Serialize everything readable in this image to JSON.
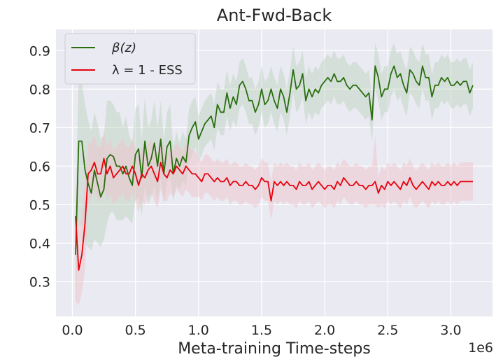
{
  "chart_data": {
    "type": "line",
    "title": "Ant-Fwd-Back",
    "xlabel": "Meta-training Time-steps",
    "ylabel": "",
    "x_offset_label": "1e6",
    "xlim": [
      -0.13,
      3.33
    ],
    "ylim": [
      0.21,
      0.955
    ],
    "x_ticks": [
      0.0,
      0.5,
      1.0,
      1.5,
      2.0,
      2.5,
      3.0
    ],
    "x_tick_labels": [
      "0.0",
      "0.5",
      "1.0",
      "1.5",
      "2.0",
      "2.5",
      "3.0"
    ],
    "y_ticks": [
      0.3,
      0.4,
      0.5,
      0.6,
      0.7,
      0.8,
      0.9
    ],
    "y_tick_labels": [
      "0.3",
      "0.4",
      "0.5",
      "0.6",
      "0.7",
      "0.8",
      "0.9"
    ],
    "grid": true,
    "legend_position": "top-left",
    "series": [
      {
        "name": "β(z)",
        "color": "#2a6e0f",
        "band_color": "#bcd2bc",
        "x": [
          0.025,
          0.05,
          0.075,
          0.1,
          0.125,
          0.15,
          0.175,
          0.2,
          0.225,
          0.25,
          0.275,
          0.3,
          0.325,
          0.35,
          0.375,
          0.4,
          0.425,
          0.45,
          0.475,
          0.5,
          0.525,
          0.55,
          0.575,
          0.6,
          0.625,
          0.65,
          0.675,
          0.7,
          0.725,
          0.75,
          0.775,
          0.8,
          0.825,
          0.85,
          0.875,
          0.9,
          0.925,
          0.95,
          0.975,
          1.0,
          1.025,
          1.05,
          1.075,
          1.1,
          1.125,
          1.15,
          1.175,
          1.2,
          1.225,
          1.25,
          1.275,
          1.3,
          1.325,
          1.35,
          1.375,
          1.4,
          1.425,
          1.45,
          1.475,
          1.5,
          1.525,
          1.55,
          1.575,
          1.6,
          1.625,
          1.65,
          1.675,
          1.7,
          1.725,
          1.75,
          1.775,
          1.8,
          1.825,
          1.85,
          1.875,
          1.9,
          1.925,
          1.95,
          1.975,
          2.0,
          2.025,
          2.05,
          2.075,
          2.1,
          2.125,
          2.15,
          2.175,
          2.2,
          2.225,
          2.25,
          2.275,
          2.3,
          2.325,
          2.35,
          2.375,
          2.4,
          2.425,
          2.45,
          2.475,
          2.5,
          2.525,
          2.55,
          2.575,
          2.6,
          2.625,
          2.65,
          2.675,
          2.7,
          2.725,
          2.75,
          2.775,
          2.8,
          2.825,
          2.85,
          2.875,
          2.9,
          2.925,
          2.95,
          2.975,
          3.0,
          3.025,
          3.05,
          3.075,
          3.1,
          3.125,
          3.15,
          3.175
        ],
        "values": [
          0.37,
          0.665,
          0.665,
          0.59,
          0.555,
          0.53,
          0.59,
          0.555,
          0.52,
          0.54,
          0.62,
          0.63,
          0.625,
          0.6,
          0.6,
          0.58,
          0.6,
          0.57,
          0.55,
          0.63,
          0.645,
          0.57,
          0.665,
          0.6,
          0.62,
          0.66,
          0.6,
          0.67,
          0.58,
          0.65,
          0.665,
          0.58,
          0.62,
          0.6,
          0.625,
          0.61,
          0.68,
          0.7,
          0.715,
          0.67,
          0.69,
          0.71,
          0.72,
          0.73,
          0.7,
          0.76,
          0.74,
          0.74,
          0.79,
          0.75,
          0.78,
          0.76,
          0.81,
          0.82,
          0.8,
          0.77,
          0.77,
          0.74,
          0.76,
          0.8,
          0.76,
          0.77,
          0.8,
          0.77,
          0.75,
          0.8,
          0.78,
          0.74,
          0.79,
          0.85,
          0.8,
          0.81,
          0.84,
          0.77,
          0.8,
          0.78,
          0.8,
          0.79,
          0.81,
          0.82,
          0.83,
          0.82,
          0.84,
          0.82,
          0.82,
          0.83,
          0.81,
          0.8,
          0.81,
          0.81,
          0.8,
          0.79,
          0.78,
          0.79,
          0.72,
          0.86,
          0.83,
          0.78,
          0.8,
          0.8,
          0.84,
          0.86,
          0.83,
          0.84,
          0.81,
          0.79,
          0.85,
          0.84,
          0.82,
          0.81,
          0.86,
          0.83,
          0.83,
          0.78,
          0.81,
          0.81,
          0.83,
          0.82,
          0.83,
          0.81,
          0.81,
          0.82,
          0.81,
          0.82,
          0.82,
          0.79,
          0.81
        ],
        "lower": [
          0.22,
          0.44,
          0.45,
          0.4,
          0.39,
          0.38,
          0.41,
          0.4,
          0.39,
          0.41,
          0.45,
          0.48,
          0.48,
          0.46,
          0.46,
          0.46,
          0.47,
          0.46,
          0.45,
          0.51,
          0.52,
          0.47,
          0.55,
          0.5,
          0.52,
          0.55,
          0.5,
          0.57,
          0.5,
          0.56,
          0.57,
          0.51,
          0.55,
          0.54,
          0.56,
          0.55,
          0.61,
          0.63,
          0.65,
          0.61,
          0.63,
          0.65,
          0.66,
          0.67,
          0.64,
          0.7,
          0.68,
          0.68,
          0.73,
          0.69,
          0.72,
          0.7,
          0.75,
          0.76,
          0.74,
          0.71,
          0.71,
          0.68,
          0.7,
          0.74,
          0.7,
          0.71,
          0.74,
          0.71,
          0.69,
          0.74,
          0.72,
          0.68,
          0.73,
          0.79,
          0.74,
          0.75,
          0.78,
          0.71,
          0.74,
          0.72,
          0.74,
          0.73,
          0.75,
          0.76,
          0.77,
          0.76,
          0.78,
          0.76,
          0.76,
          0.77,
          0.75,
          0.74,
          0.75,
          0.75,
          0.74,
          0.73,
          0.72,
          0.73,
          0.66,
          0.8,
          0.77,
          0.72,
          0.74,
          0.74,
          0.78,
          0.8,
          0.77,
          0.78,
          0.75,
          0.73,
          0.79,
          0.78,
          0.76,
          0.75,
          0.8,
          0.77,
          0.77,
          0.72,
          0.75,
          0.75,
          0.77,
          0.76,
          0.77,
          0.75,
          0.75,
          0.76,
          0.75,
          0.76,
          0.76,
          0.73,
          0.75
        ],
        "upper": [
          0.5,
          0.83,
          0.82,
          0.76,
          0.72,
          0.69,
          0.74,
          0.71,
          0.67,
          0.68,
          0.77,
          0.77,
          0.76,
          0.74,
          0.74,
          0.7,
          0.73,
          0.68,
          0.66,
          0.75,
          0.76,
          0.67,
          0.78,
          0.7,
          0.72,
          0.77,
          0.7,
          0.77,
          0.67,
          0.74,
          0.76,
          0.65,
          0.69,
          0.66,
          0.69,
          0.67,
          0.75,
          0.77,
          0.78,
          0.73,
          0.75,
          0.77,
          0.78,
          0.79,
          0.76,
          0.82,
          0.8,
          0.8,
          0.85,
          0.81,
          0.84,
          0.82,
          0.87,
          0.88,
          0.86,
          0.83,
          0.83,
          0.8,
          0.82,
          0.86,
          0.82,
          0.83,
          0.86,
          0.83,
          0.81,
          0.86,
          0.84,
          0.8,
          0.85,
          0.91,
          0.86,
          0.87,
          0.9,
          0.83,
          0.86,
          0.84,
          0.86,
          0.85,
          0.87,
          0.88,
          0.89,
          0.88,
          0.9,
          0.88,
          0.88,
          0.89,
          0.87,
          0.86,
          0.87,
          0.87,
          0.86,
          0.85,
          0.84,
          0.85,
          0.78,
          0.92,
          0.89,
          0.84,
          0.86,
          0.86,
          0.9,
          0.92,
          0.89,
          0.9,
          0.87,
          0.85,
          0.91,
          0.9,
          0.88,
          0.87,
          0.92,
          0.89,
          0.89,
          0.84,
          0.87,
          0.87,
          0.89,
          0.88,
          0.89,
          0.87,
          0.87,
          0.88,
          0.87,
          0.88,
          0.88,
          0.85,
          0.87
        ]
      },
      {
        "name": "λ = 1 - ESS",
        "color": "#e8000b",
        "band_color": "#f0c0c8",
        "x": [
          0.025,
          0.05,
          0.075,
          0.1,
          0.125,
          0.15,
          0.175,
          0.2,
          0.225,
          0.25,
          0.275,
          0.3,
          0.325,
          0.35,
          0.375,
          0.4,
          0.425,
          0.45,
          0.475,
          0.5,
          0.525,
          0.55,
          0.575,
          0.6,
          0.625,
          0.65,
          0.675,
          0.7,
          0.725,
          0.75,
          0.775,
          0.8,
          0.825,
          0.85,
          0.875,
          0.9,
          0.925,
          0.95,
          0.975,
          1.0,
          1.025,
          1.05,
          1.075,
          1.1,
          1.125,
          1.15,
          1.175,
          1.2,
          1.225,
          1.25,
          1.275,
          1.3,
          1.325,
          1.35,
          1.375,
          1.4,
          1.425,
          1.45,
          1.475,
          1.5,
          1.525,
          1.55,
          1.575,
          1.6,
          1.625,
          1.65,
          1.675,
          1.7,
          1.725,
          1.75,
          1.775,
          1.8,
          1.825,
          1.85,
          1.875,
          1.9,
          1.925,
          1.95,
          1.975,
          2.0,
          2.025,
          2.05,
          2.075,
          2.1,
          2.125,
          2.15,
          2.175,
          2.2,
          2.225,
          2.25,
          2.275,
          2.3,
          2.325,
          2.35,
          2.375,
          2.4,
          2.425,
          2.45,
          2.475,
          2.5,
          2.525,
          2.55,
          2.575,
          2.6,
          2.625,
          2.65,
          2.675,
          2.7,
          2.725,
          2.75,
          2.775,
          2.8,
          2.825,
          2.85,
          2.875,
          2.9,
          2.925,
          2.95,
          2.975,
          3.0,
          3.025,
          3.05,
          3.075,
          3.1,
          3.125,
          3.15,
          3.175
        ],
        "values": [
          0.47,
          0.33,
          0.37,
          0.45,
          0.58,
          0.59,
          0.61,
          0.58,
          0.58,
          0.62,
          0.58,
          0.6,
          0.57,
          0.58,
          0.59,
          0.6,
          0.58,
          0.58,
          0.6,
          0.58,
          0.55,
          0.58,
          0.57,
          0.59,
          0.6,
          0.58,
          0.56,
          0.61,
          0.58,
          0.57,
          0.59,
          0.58,
          0.6,
          0.59,
          0.58,
          0.6,
          0.59,
          0.58,
          0.58,
          0.57,
          0.56,
          0.58,
          0.58,
          0.57,
          0.56,
          0.57,
          0.56,
          0.56,
          0.57,
          0.55,
          0.56,
          0.56,
          0.55,
          0.55,
          0.56,
          0.55,
          0.55,
          0.54,
          0.55,
          0.57,
          0.56,
          0.56,
          0.51,
          0.56,
          0.55,
          0.56,
          0.55,
          0.56,
          0.55,
          0.55,
          0.54,
          0.56,
          0.55,
          0.55,
          0.56,
          0.54,
          0.55,
          0.56,
          0.55,
          0.54,
          0.55,
          0.55,
          0.54,
          0.56,
          0.55,
          0.57,
          0.56,
          0.55,
          0.55,
          0.56,
          0.55,
          0.55,
          0.54,
          0.55,
          0.55,
          0.56,
          0.53,
          0.55,
          0.54,
          0.56,
          0.55,
          0.56,
          0.55,
          0.54,
          0.56,
          0.55,
          0.57,
          0.55,
          0.54,
          0.55,
          0.56,
          0.55,
          0.54,
          0.56,
          0.55,
          0.56,
          0.55,
          0.55,
          0.56,
          0.55,
          0.56,
          0.55,
          0.56,
          0.56,
          0.56,
          0.56,
          0.56
        ],
        "lower": [
          0.25,
          0.24,
          0.27,
          0.33,
          0.5,
          0.52,
          0.54,
          0.51,
          0.51,
          0.55,
          0.51,
          0.53,
          0.5,
          0.51,
          0.52,
          0.53,
          0.51,
          0.51,
          0.53,
          0.51,
          0.48,
          0.51,
          0.5,
          0.52,
          0.53,
          0.51,
          0.49,
          0.54,
          0.51,
          0.51,
          0.53,
          0.52,
          0.54,
          0.53,
          0.52,
          0.54,
          0.53,
          0.52,
          0.52,
          0.52,
          0.51,
          0.53,
          0.53,
          0.52,
          0.51,
          0.52,
          0.51,
          0.51,
          0.52,
          0.5,
          0.51,
          0.51,
          0.5,
          0.5,
          0.51,
          0.5,
          0.5,
          0.49,
          0.5,
          0.52,
          0.51,
          0.51,
          0.46,
          0.51,
          0.5,
          0.51,
          0.5,
          0.51,
          0.5,
          0.5,
          0.49,
          0.51,
          0.5,
          0.5,
          0.51,
          0.49,
          0.5,
          0.51,
          0.5,
          0.49,
          0.5,
          0.5,
          0.49,
          0.51,
          0.5,
          0.52,
          0.51,
          0.5,
          0.5,
          0.51,
          0.5,
          0.5,
          0.49,
          0.5,
          0.5,
          0.5,
          0.49,
          0.5,
          0.49,
          0.51,
          0.5,
          0.51,
          0.5,
          0.49,
          0.51,
          0.5,
          0.52,
          0.5,
          0.49,
          0.5,
          0.51,
          0.5,
          0.49,
          0.51,
          0.5,
          0.51,
          0.5,
          0.5,
          0.51,
          0.5,
          0.51,
          0.5,
          0.51,
          0.51,
          0.51,
          0.51,
          0.51
        ],
        "upper": [
          0.6,
          0.43,
          0.47,
          0.56,
          0.66,
          0.66,
          0.68,
          0.65,
          0.65,
          0.69,
          0.65,
          0.67,
          0.64,
          0.65,
          0.66,
          0.67,
          0.65,
          0.65,
          0.67,
          0.65,
          0.62,
          0.65,
          0.64,
          0.66,
          0.67,
          0.65,
          0.63,
          0.68,
          0.65,
          0.63,
          0.65,
          0.64,
          0.66,
          0.65,
          0.64,
          0.66,
          0.65,
          0.64,
          0.64,
          0.62,
          0.61,
          0.63,
          0.63,
          0.62,
          0.61,
          0.62,
          0.61,
          0.61,
          0.62,
          0.6,
          0.61,
          0.61,
          0.6,
          0.6,
          0.61,
          0.6,
          0.6,
          0.59,
          0.6,
          0.62,
          0.61,
          0.61,
          0.56,
          0.61,
          0.6,
          0.61,
          0.6,
          0.61,
          0.6,
          0.6,
          0.59,
          0.61,
          0.6,
          0.6,
          0.61,
          0.59,
          0.6,
          0.61,
          0.6,
          0.59,
          0.6,
          0.6,
          0.59,
          0.61,
          0.6,
          0.62,
          0.61,
          0.6,
          0.6,
          0.61,
          0.6,
          0.6,
          0.59,
          0.6,
          0.6,
          0.68,
          0.57,
          0.6,
          0.59,
          0.61,
          0.6,
          0.61,
          0.6,
          0.59,
          0.61,
          0.6,
          0.62,
          0.6,
          0.59,
          0.6,
          0.61,
          0.6,
          0.59,
          0.61,
          0.6,
          0.61,
          0.6,
          0.6,
          0.61,
          0.6,
          0.61,
          0.6,
          0.61,
          0.61,
          0.61,
          0.61,
          0.61
        ]
      }
    ]
  }
}
